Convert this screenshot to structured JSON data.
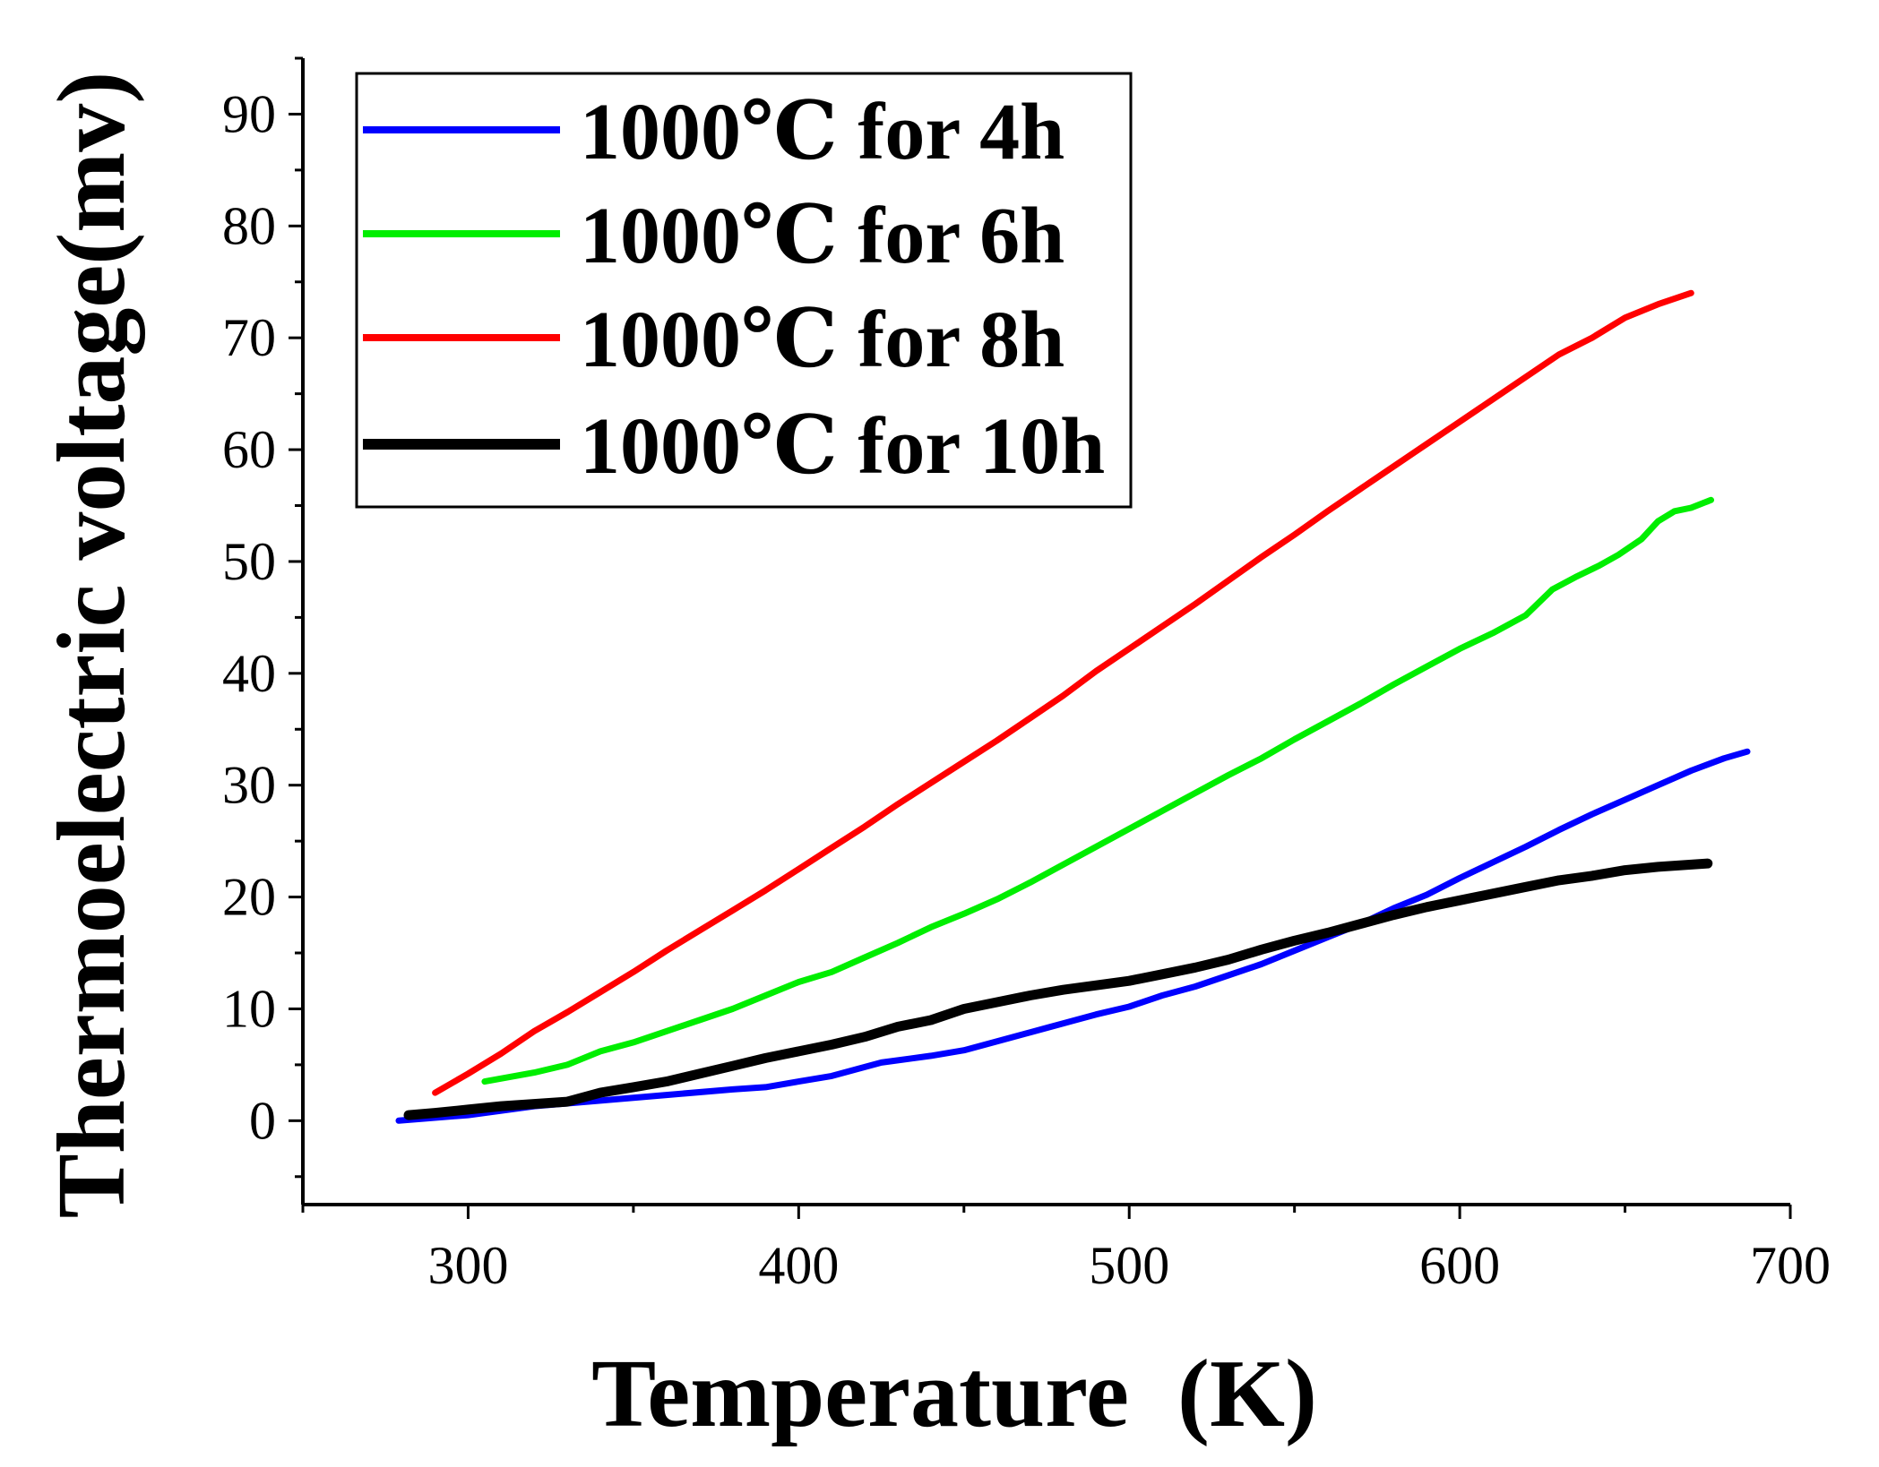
{
  "chart_data": {
    "type": "line",
    "title": "",
    "xlabel": "Temperature  (K)",
    "ylabel": "Thermoelectric voltage(mv)",
    "xlim": [
      250,
      700
    ],
    "ylim": [
      -7.5,
      95
    ],
    "x_ticks": [
      300,
      400,
      500,
      600,
      700
    ],
    "y_ticks": [
      0,
      10,
      20,
      30,
      40,
      50,
      60,
      70,
      80,
      90
    ],
    "grid": false,
    "legend_position": "top-left",
    "series": [
      {
        "name": "1000℃ for 4h",
        "color": "#0000ff",
        "points": [
          [
            279,
            0
          ],
          [
            300,
            0.5
          ],
          [
            320,
            1.3
          ],
          [
            340,
            1.8
          ],
          [
            360,
            2.3
          ],
          [
            380,
            2.8
          ],
          [
            390,
            3.0
          ],
          [
            400,
            3.5
          ],
          [
            410,
            4.0
          ],
          [
            420,
            4.8
          ],
          [
            425,
            5.2
          ],
          [
            440,
            5.8
          ],
          [
            450,
            6.3
          ],
          [
            460,
            7.1
          ],
          [
            470,
            7.9
          ],
          [
            480,
            8.7
          ],
          [
            490,
            9.5
          ],
          [
            500,
            10.2
          ],
          [
            510,
            11.2
          ],
          [
            520,
            12.0
          ],
          [
            530,
            13.0
          ],
          [
            540,
            14.0
          ],
          [
            550,
            15.2
          ],
          [
            560,
            16.4
          ],
          [
            570,
            17.6
          ],
          [
            580,
            19.0
          ],
          [
            590,
            20.2
          ],
          [
            600,
            21.7
          ],
          [
            610,
            23.1
          ],
          [
            620,
            24.5
          ],
          [
            630,
            26.0
          ],
          [
            640,
            27.4
          ],
          [
            650,
            28.7
          ],
          [
            660,
            30.0
          ],
          [
            670,
            31.3
          ],
          [
            680,
            32.4
          ],
          [
            687,
            33.0
          ]
        ]
      },
      {
        "name": "1000℃ for 6h",
        "color": "#00ee00",
        "points": [
          [
            305,
            3.5
          ],
          [
            320,
            4.3
          ],
          [
            330,
            5.0
          ],
          [
            340,
            6.2
          ],
          [
            350,
            7.0
          ],
          [
            360,
            8.0
          ],
          [
            370,
            9.0
          ],
          [
            380,
            10.0
          ],
          [
            390,
            11.2
          ],
          [
            400,
            12.4
          ],
          [
            410,
            13.3
          ],
          [
            420,
            14.6
          ],
          [
            430,
            15.9
          ],
          [
            440,
            17.3
          ],
          [
            450,
            18.5
          ],
          [
            460,
            19.8
          ],
          [
            470,
            21.3
          ],
          [
            480,
            22.9
          ],
          [
            490,
            24.5
          ],
          [
            500,
            26.1
          ],
          [
            510,
            27.7
          ],
          [
            520,
            29.3
          ],
          [
            530,
            30.9
          ],
          [
            540,
            32.4
          ],
          [
            550,
            34.1
          ],
          [
            560,
            35.7
          ],
          [
            570,
            37.3
          ],
          [
            580,
            39.0
          ],
          [
            590,
            40.6
          ],
          [
            600,
            42.2
          ],
          [
            610,
            43.6
          ],
          [
            620,
            45.2
          ],
          [
            628,
            47.5
          ],
          [
            635,
            48.6
          ],
          [
            642,
            49.6
          ],
          [
            648,
            50.6
          ],
          [
            655,
            52.0
          ],
          [
            660,
            53.6
          ],
          [
            665,
            54.5
          ],
          [
            670,
            54.8
          ],
          [
            676,
            55.5
          ]
        ]
      },
      {
        "name": "1000℃ for 8h",
        "color": "#ff0000",
        "points": [
          [
            290,
            2.5
          ],
          [
            300,
            4.2
          ],
          [
            310,
            6.0
          ],
          [
            320,
            8.0
          ],
          [
            330,
            9.7
          ],
          [
            340,
            11.5
          ],
          [
            350,
            13.3
          ],
          [
            360,
            15.2
          ],
          [
            370,
            17.0
          ],
          [
            380,
            18.8
          ],
          [
            390,
            20.6
          ],
          [
            400,
            22.5
          ],
          [
            410,
            24.4
          ],
          [
            420,
            26.3
          ],
          [
            430,
            28.3
          ],
          [
            440,
            30.2
          ],
          [
            450,
            32.1
          ],
          [
            460,
            34.0
          ],
          [
            470,
            36.0
          ],
          [
            480,
            38.0
          ],
          [
            490,
            40.2
          ],
          [
            500,
            42.2
          ],
          [
            510,
            44.2
          ],
          [
            520,
            46.2
          ],
          [
            530,
            48.3
          ],
          [
            540,
            50.4
          ],
          [
            550,
            52.4
          ],
          [
            560,
            54.5
          ],
          [
            570,
            56.5
          ],
          [
            580,
            58.5
          ],
          [
            590,
            60.5
          ],
          [
            600,
            62.5
          ],
          [
            610,
            64.5
          ],
          [
            620,
            66.5
          ],
          [
            630,
            68.5
          ],
          [
            640,
            70.0
          ],
          [
            650,
            71.8
          ],
          [
            660,
            73.0
          ],
          [
            670,
            74.0
          ]
        ]
      },
      {
        "name": "1000℃ for 10h",
        "color": "#000000",
        "points": [
          [
            282,
            0.5
          ],
          [
            290,
            0.7
          ],
          [
            300,
            1.0
          ],
          [
            310,
            1.3
          ],
          [
            320,
            1.5
          ],
          [
            330,
            1.7
          ],
          [
            340,
            2.5
          ],
          [
            350,
            3.0
          ],
          [
            360,
            3.5
          ],
          [
            370,
            4.2
          ],
          [
            380,
            4.9
          ],
          [
            390,
            5.6
          ],
          [
            400,
            6.2
          ],
          [
            410,
            6.8
          ],
          [
            420,
            7.5
          ],
          [
            430,
            8.4
          ],
          [
            440,
            9.0
          ],
          [
            450,
            10.0
          ],
          [
            460,
            10.6
          ],
          [
            470,
            11.2
          ],
          [
            480,
            11.7
          ],
          [
            490,
            12.1
          ],
          [
            500,
            12.5
          ],
          [
            510,
            13.1
          ],
          [
            520,
            13.7
          ],
          [
            530,
            14.4
          ],
          [
            540,
            15.3
          ],
          [
            550,
            16.1
          ],
          [
            560,
            16.8
          ],
          [
            570,
            17.6
          ],
          [
            580,
            18.4
          ],
          [
            590,
            19.1
          ],
          [
            600,
            19.7
          ],
          [
            610,
            20.3
          ],
          [
            620,
            20.9
          ],
          [
            630,
            21.5
          ],
          [
            640,
            21.9
          ],
          [
            650,
            22.4
          ],
          [
            660,
            22.7
          ],
          [
            675,
            23.0
          ]
        ]
      }
    ]
  }
}
